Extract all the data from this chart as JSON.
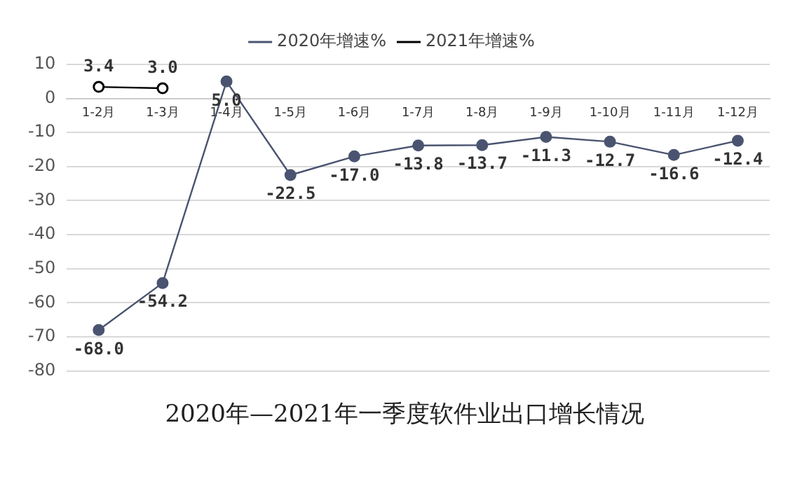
{
  "chart_data": {
    "type": "line",
    "title": "2020年—2021年一季度软件业出口增长情况",
    "categories": [
      "1-2月",
      "1-3月",
      "1-4月",
      "1-5月",
      "1-6月",
      "1-7月",
      "1-8月",
      "1-9月",
      "1-10月",
      "1-11月",
      "1-12月"
    ],
    "series": [
      {
        "name": "2020年增速%",
        "color": "#4a5470",
        "values": [
          -68.0,
          -54.2,
          5.0,
          -22.5,
          -17.0,
          -13.8,
          -13.7,
          -11.3,
          -12.7,
          -16.6,
          -12.4
        ],
        "value_labels": [
          "-68.0",
          "-54.2",
          "5.0",
          "-22.5",
          "-17.0",
          "-13.8",
          "-13.7",
          "-11.3",
          "-12.7",
          "-16.6",
          "-12.4"
        ]
      },
      {
        "name": "2021年增速%",
        "color": "#000000",
        "values": [
          3.4,
          3.0,
          null,
          null,
          null,
          null,
          null,
          null,
          null,
          null,
          null
        ],
        "value_labels": [
          "3.4",
          "3.0",
          null,
          null,
          null,
          null,
          null,
          null,
          null,
          null,
          null
        ]
      }
    ],
    "ylim": [
      -80,
      10
    ],
    "yticks": [
      10,
      0,
      -10,
      -20,
      -30,
      -40,
      -50,
      -60,
      -70,
      -80
    ],
    "grid": "y",
    "legend": "top",
    "marker": "circle"
  }
}
